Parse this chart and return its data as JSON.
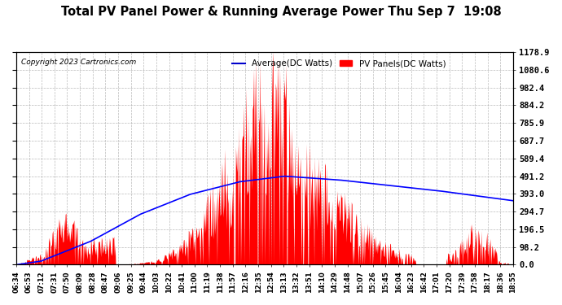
{
  "title": "Total PV Panel Power & Running Average Power Thu Sep 7  19:08",
  "copyright": "Copyright 2023 Cartronics.com",
  "legend_avg": "Average(DC Watts)",
  "legend_pv": "PV Panels(DC Watts)",
  "ylabel_right_ticks": [
    0.0,
    98.2,
    196.5,
    294.7,
    393.0,
    491.2,
    589.4,
    687.7,
    785.9,
    884.2,
    982.4,
    1080.6,
    1178.9
  ],
  "ylim": [
    0,
    1178.9
  ],
  "x_tick_labels": [
    "06:34",
    "06:53",
    "07:12",
    "07:31",
    "07:50",
    "08:09",
    "08:28",
    "08:47",
    "09:06",
    "09:25",
    "09:44",
    "10:03",
    "10:22",
    "10:41",
    "11:00",
    "11:19",
    "11:38",
    "11:57",
    "12:16",
    "12:35",
    "12:54",
    "13:13",
    "13:32",
    "13:51",
    "14:10",
    "14:29",
    "14:48",
    "15:07",
    "15:26",
    "15:45",
    "16:04",
    "16:23",
    "16:42",
    "17:01",
    "17:20",
    "17:39",
    "17:58",
    "18:17",
    "18:36",
    "18:55"
  ],
  "background_color": "#ffffff",
  "grid_color": "#aaaaaa",
  "pv_color": "#ff0000",
  "avg_color": "#0000ff",
  "title_color": "#000000",
  "copyright_color": "#000000",
  "legend_avg_color": "#0000cc",
  "legend_pv_color": "#ff0000"
}
